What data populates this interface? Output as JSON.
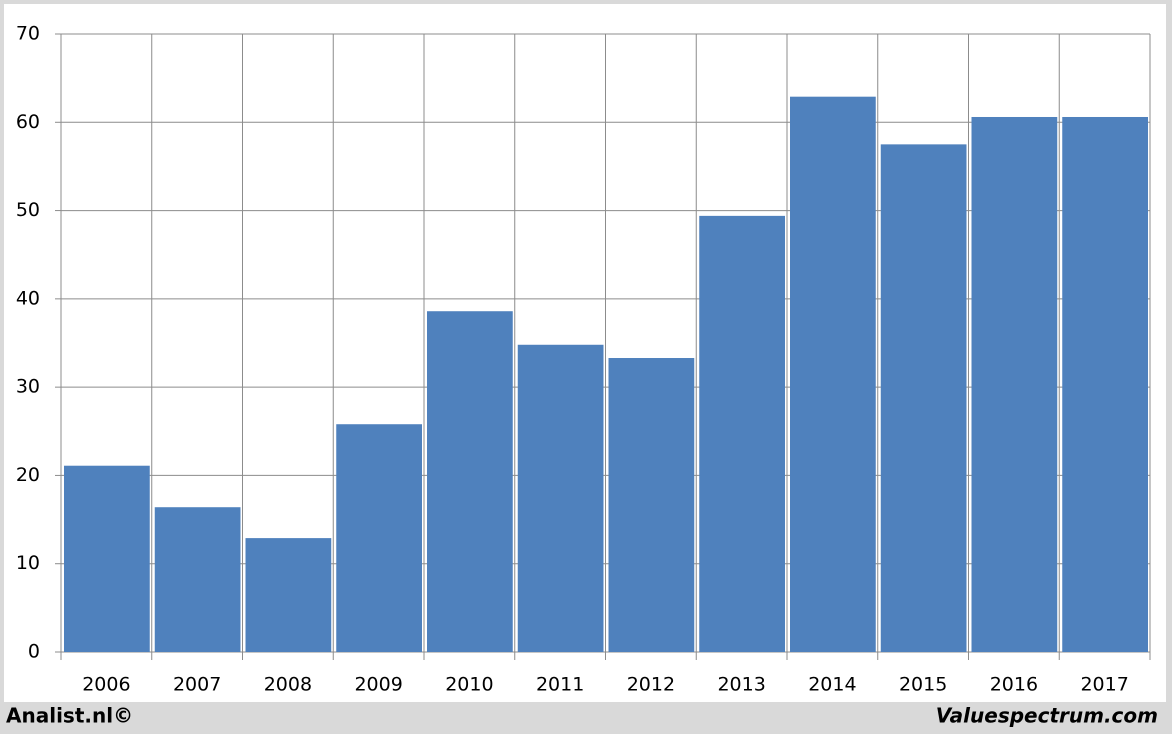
{
  "chart_data": {
    "type": "bar",
    "categories": [
      "2006",
      "2007",
      "2008",
      "2009",
      "2010",
      "2011",
      "2012",
      "2013",
      "2014",
      "2015",
      "2016",
      "2017"
    ],
    "values": [
      21.1,
      16.4,
      12.9,
      25.8,
      38.6,
      34.8,
      33.3,
      49.4,
      62.9,
      57.5,
      60.6,
      60.6
    ],
    "color": "#4f81bd",
    "ylim": [
      0,
      70
    ],
    "yticks": [
      0,
      10,
      20,
      30,
      40,
      50,
      60,
      70
    ],
    "grid": true,
    "annotations": [
      "Analist.nl©",
      "Valuespectrum.com"
    ]
  }
}
